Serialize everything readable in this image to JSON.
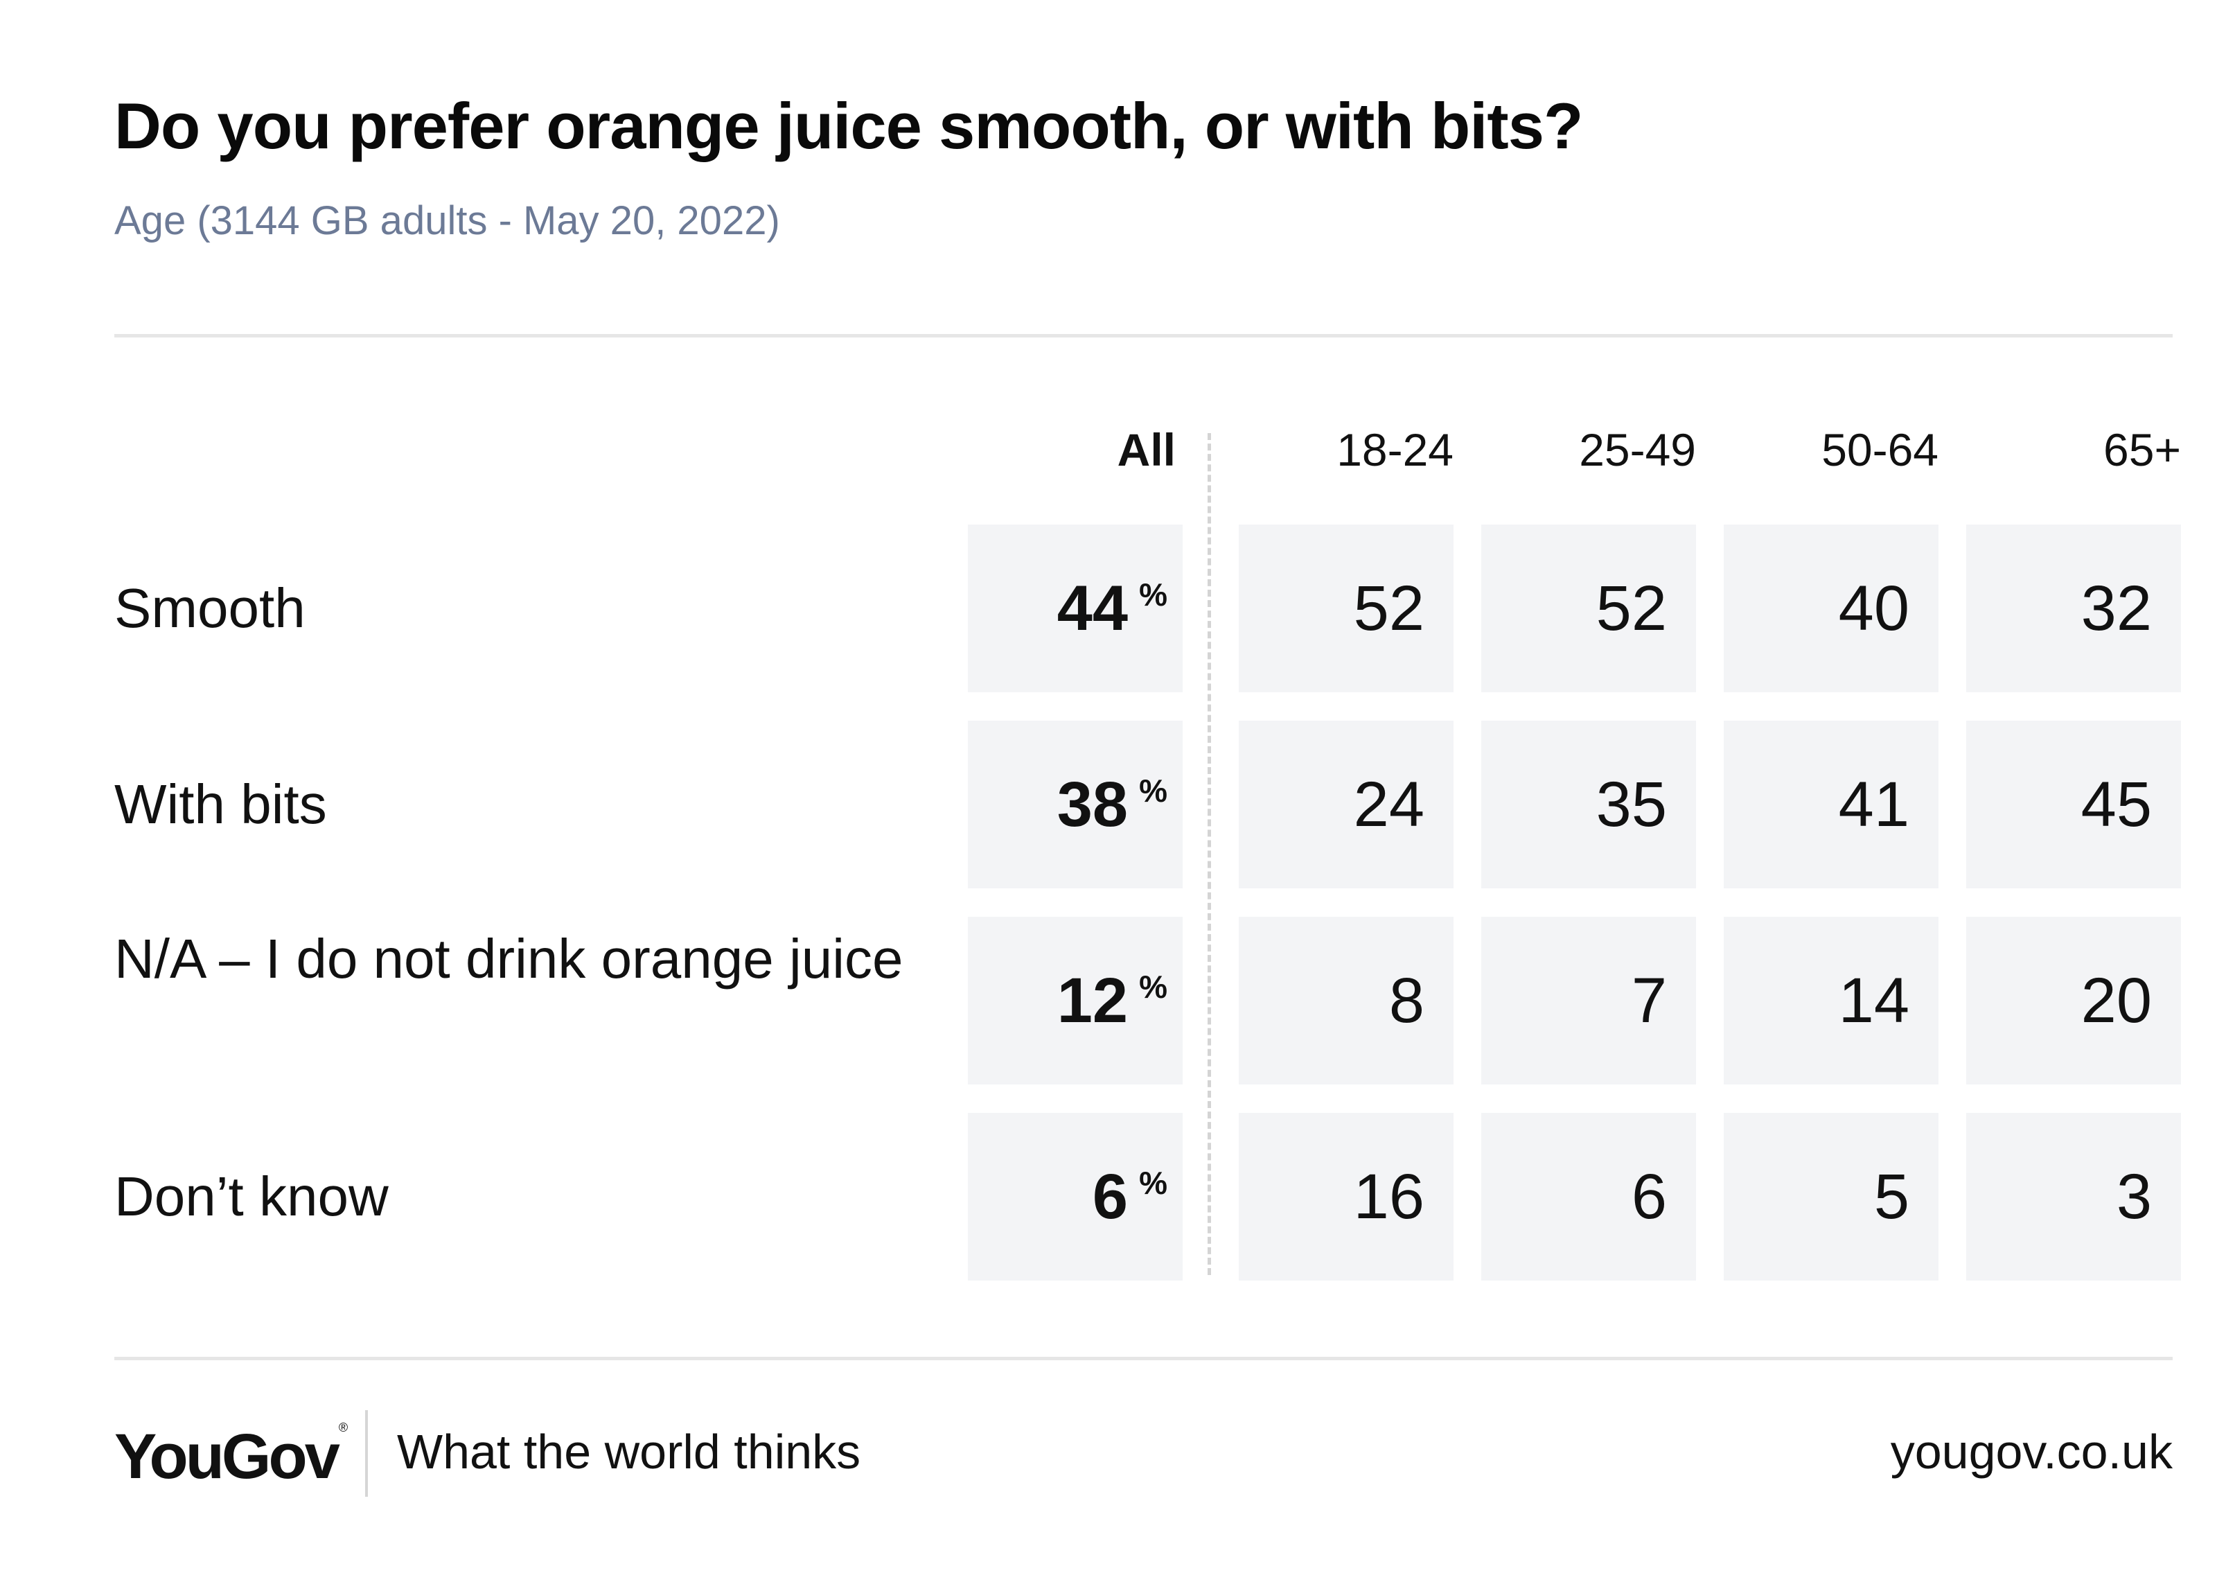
{
  "header": {
    "title": "Do you prefer orange juice smooth, or with bits?",
    "subtitle": "Age (3144 GB adults - May 20, 2022)"
  },
  "table": {
    "columns": [
      "All",
      "18-24",
      "25-49",
      "50-64",
      "65+"
    ],
    "percent_symbol": "%",
    "rows": [
      {
        "label": "Smooth",
        "values": [
          "44",
          "52",
          "52",
          "40",
          "32"
        ]
      },
      {
        "label": "With bits",
        "values": [
          "38",
          "24",
          "35",
          "41",
          "45"
        ]
      },
      {
        "label": "N/A – I do not drink orange juice",
        "values": [
          "12",
          "8",
          "7",
          "14",
          "20"
        ]
      },
      {
        "label": "Don’t know",
        "values": [
          "6",
          "16",
          "6",
          "5",
          "3"
        ]
      }
    ]
  },
  "chart_data": {
    "type": "table",
    "title": "Do you prefer orange juice smooth, or with bits?",
    "subtitle": "Age (3144 GB adults - May 20, 2022)",
    "categories": [
      "Smooth",
      "With bits",
      "N/A – I do not drink orange juice",
      "Don’t know"
    ],
    "series": [
      {
        "name": "All",
        "values": [
          44,
          38,
          12,
          6
        ]
      },
      {
        "name": "18-24",
        "values": [
          52,
          24,
          8,
          16
        ]
      },
      {
        "name": "25-49",
        "values": [
          52,
          35,
          7,
          6
        ]
      },
      {
        "name": "50-64",
        "values": [
          40,
          41,
          14,
          5
        ]
      },
      {
        "name": "65+",
        "values": [
          32,
          45,
          20,
          3
        ]
      }
    ],
    "unit": "%"
  },
  "footer": {
    "logo": "YouGov",
    "logo_mark": "®",
    "tagline": "What the world thinks",
    "url": "yougov.co.uk"
  },
  "colors": {
    "cell_background": "#f3f4f6",
    "subtitle": "#6c7a96",
    "rule": "#e6e6e6",
    "text": "#111111"
  }
}
